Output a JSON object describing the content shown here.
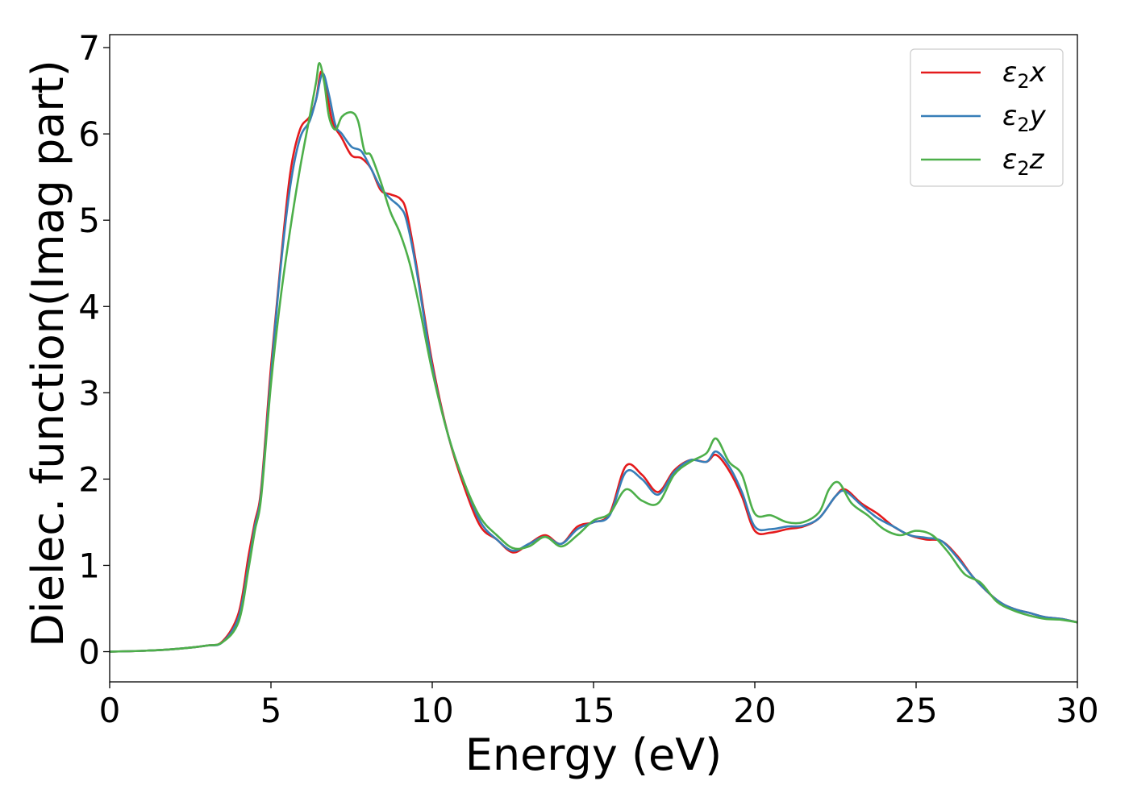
{
  "chart_data": {
    "type": "line",
    "xlabel": "Energy (eV)",
    "ylabel": "Dielec. function(Imag part)",
    "xlim": [
      0,
      30
    ],
    "ylim": [
      -0.35,
      7.15
    ],
    "xticks": [
      0,
      5,
      10,
      15,
      20,
      25,
      30
    ],
    "yticks": [
      0,
      1,
      2,
      3,
      4,
      5,
      6,
      7
    ],
    "grid": false,
    "legend_position": "top-right",
    "series": [
      {
        "name": "ε2x",
        "sub": "2",
        "suffix": "x",
        "color": "#e41a1c",
        "points": [
          [
            0,
            0
          ],
          [
            1,
            0.01
          ],
          [
            2,
            0.03
          ],
          [
            3,
            0.07
          ],
          [
            3.5,
            0.12
          ],
          [
            4,
            0.45
          ],
          [
            4.3,
            1.1
          ],
          [
            4.5,
            1.5
          ],
          [
            4.7,
            1.9
          ],
          [
            5,
            3.3
          ],
          [
            5.3,
            4.5
          ],
          [
            5.6,
            5.55
          ],
          [
            5.9,
            6.05
          ],
          [
            6.2,
            6.2
          ],
          [
            6.4,
            6.4
          ],
          [
            6.55,
            6.72
          ],
          [
            6.7,
            6.55
          ],
          [
            6.9,
            6.15
          ],
          [
            7.2,
            5.95
          ],
          [
            7.5,
            5.75
          ],
          [
            7.8,
            5.72
          ],
          [
            8.1,
            5.6
          ],
          [
            8.4,
            5.35
          ],
          [
            8.7,
            5.3
          ],
          [
            9,
            5.25
          ],
          [
            9.2,
            5.1
          ],
          [
            9.5,
            4.5
          ],
          [
            10,
            3.35
          ],
          [
            10.5,
            2.5
          ],
          [
            11,
            1.9
          ],
          [
            11.5,
            1.45
          ],
          [
            12,
            1.3
          ],
          [
            12.5,
            1.15
          ],
          [
            13,
            1.25
          ],
          [
            13.5,
            1.35
          ],
          [
            14,
            1.25
          ],
          [
            14.5,
            1.45
          ],
          [
            15,
            1.5
          ],
          [
            15.5,
            1.6
          ],
          [
            16,
            2.15
          ],
          [
            16.5,
            2.05
          ],
          [
            17,
            1.85
          ],
          [
            17.5,
            2.1
          ],
          [
            18,
            2.22
          ],
          [
            18.5,
            2.2
          ],
          [
            18.8,
            2.28
          ],
          [
            19.2,
            2.1
          ],
          [
            19.6,
            1.8
          ],
          [
            20,
            1.4
          ],
          [
            20.5,
            1.38
          ],
          [
            21,
            1.42
          ],
          [
            21.5,
            1.45
          ],
          [
            22,
            1.55
          ],
          [
            22.5,
            1.8
          ],
          [
            22.8,
            1.88
          ],
          [
            23.3,
            1.72
          ],
          [
            23.8,
            1.6
          ],
          [
            24.3,
            1.45
          ],
          [
            24.8,
            1.35
          ],
          [
            25.3,
            1.3
          ],
          [
            25.8,
            1.28
          ],
          [
            26.3,
            1.1
          ],
          [
            26.8,
            0.85
          ],
          [
            27.5,
            0.6
          ],
          [
            28,
            0.5
          ],
          [
            28.5,
            0.45
          ],
          [
            29,
            0.4
          ],
          [
            29.5,
            0.38
          ],
          [
            30,
            0.34
          ]
        ]
      },
      {
        "name": "ε2y",
        "sub": "2",
        "suffix": "y",
        "color": "#377eb8",
        "points": [
          [
            0,
            0
          ],
          [
            1,
            0.01
          ],
          [
            2,
            0.03
          ],
          [
            3,
            0.07
          ],
          [
            3.5,
            0.11
          ],
          [
            4,
            0.4
          ],
          [
            4.3,
            1.0
          ],
          [
            4.5,
            1.45
          ],
          [
            4.7,
            1.85
          ],
          [
            5,
            3.2
          ],
          [
            5.3,
            4.45
          ],
          [
            5.6,
            5.4
          ],
          [
            5.9,
            5.95
          ],
          [
            6.2,
            6.15
          ],
          [
            6.4,
            6.4
          ],
          [
            6.6,
            6.7
          ],
          [
            6.8,
            6.45
          ],
          [
            7,
            6.1
          ],
          [
            7.2,
            6.0
          ],
          [
            7.5,
            5.85
          ],
          [
            7.8,
            5.8
          ],
          [
            8.1,
            5.6
          ],
          [
            8.4,
            5.38
          ],
          [
            8.7,
            5.25
          ],
          [
            9,
            5.15
          ],
          [
            9.2,
            5.0
          ],
          [
            9.5,
            4.45
          ],
          [
            10,
            3.3
          ],
          [
            10.5,
            2.5
          ],
          [
            11,
            1.95
          ],
          [
            11.5,
            1.5
          ],
          [
            12,
            1.3
          ],
          [
            12.5,
            1.17
          ],
          [
            13,
            1.25
          ],
          [
            13.5,
            1.33
          ],
          [
            14,
            1.25
          ],
          [
            14.5,
            1.42
          ],
          [
            15,
            1.5
          ],
          [
            15.5,
            1.58
          ],
          [
            16,
            2.08
          ],
          [
            16.5,
            2.0
          ],
          [
            17,
            1.82
          ],
          [
            17.5,
            2.08
          ],
          [
            18,
            2.22
          ],
          [
            18.5,
            2.2
          ],
          [
            18.8,
            2.32
          ],
          [
            19.2,
            2.15
          ],
          [
            19.6,
            1.85
          ],
          [
            20,
            1.45
          ],
          [
            20.5,
            1.42
          ],
          [
            21,
            1.45
          ],
          [
            21.5,
            1.46
          ],
          [
            22,
            1.55
          ],
          [
            22.5,
            1.8
          ],
          [
            22.8,
            1.86
          ],
          [
            23.3,
            1.7
          ],
          [
            23.8,
            1.55
          ],
          [
            24.3,
            1.45
          ],
          [
            24.8,
            1.35
          ],
          [
            25.3,
            1.32
          ],
          [
            25.8,
            1.28
          ],
          [
            26.3,
            1.08
          ],
          [
            26.8,
            0.85
          ],
          [
            27.5,
            0.6
          ],
          [
            28,
            0.5
          ],
          [
            28.5,
            0.45
          ],
          [
            29,
            0.4
          ],
          [
            29.5,
            0.38
          ],
          [
            30,
            0.34
          ]
        ]
      },
      {
        "name": "ε2z",
        "sub": "2",
        "suffix": "z",
        "color": "#4daf4a",
        "points": [
          [
            0,
            0
          ],
          [
            1,
            0.01
          ],
          [
            2,
            0.03
          ],
          [
            3,
            0.07
          ],
          [
            3.5,
            0.11
          ],
          [
            4,
            0.35
          ],
          [
            4.3,
            0.95
          ],
          [
            4.5,
            1.4
          ],
          [
            4.7,
            1.8
          ],
          [
            5,
            3.1
          ],
          [
            5.3,
            4.1
          ],
          [
            5.6,
            4.9
          ],
          [
            5.9,
            5.6
          ],
          [
            6.2,
            6.2
          ],
          [
            6.4,
            6.6
          ],
          [
            6.5,
            6.82
          ],
          [
            6.65,
            6.6
          ],
          [
            6.8,
            6.2
          ],
          [
            7,
            6.05
          ],
          [
            7.2,
            6.2
          ],
          [
            7.5,
            6.25
          ],
          [
            7.7,
            6.15
          ],
          [
            7.9,
            5.8
          ],
          [
            8.1,
            5.75
          ],
          [
            8.4,
            5.45
          ],
          [
            8.7,
            5.1
          ],
          [
            9,
            4.85
          ],
          [
            9.3,
            4.5
          ],
          [
            9.6,
            4.0
          ],
          [
            10,
            3.25
          ],
          [
            10.5,
            2.5
          ],
          [
            11,
            1.95
          ],
          [
            11.5,
            1.55
          ],
          [
            12,
            1.35
          ],
          [
            12.5,
            1.2
          ],
          [
            13,
            1.22
          ],
          [
            13.5,
            1.33
          ],
          [
            14,
            1.22
          ],
          [
            14.5,
            1.35
          ],
          [
            15,
            1.52
          ],
          [
            15.5,
            1.6
          ],
          [
            16,
            1.88
          ],
          [
            16.5,
            1.75
          ],
          [
            17,
            1.72
          ],
          [
            17.5,
            2.05
          ],
          [
            18,
            2.2
          ],
          [
            18.5,
            2.3
          ],
          [
            18.8,
            2.47
          ],
          [
            19.2,
            2.2
          ],
          [
            19.6,
            2.05
          ],
          [
            20,
            1.6
          ],
          [
            20.5,
            1.58
          ],
          [
            21,
            1.5
          ],
          [
            21.5,
            1.5
          ],
          [
            22,
            1.62
          ],
          [
            22.3,
            1.88
          ],
          [
            22.6,
            1.96
          ],
          [
            23,
            1.72
          ],
          [
            23.5,
            1.58
          ],
          [
            24,
            1.42
          ],
          [
            24.5,
            1.35
          ],
          [
            25,
            1.4
          ],
          [
            25.5,
            1.35
          ],
          [
            26,
            1.15
          ],
          [
            26.5,
            0.9
          ],
          [
            27,
            0.8
          ],
          [
            27.5,
            0.58
          ],
          [
            28,
            0.48
          ],
          [
            28.5,
            0.42
          ],
          [
            29,
            0.38
          ],
          [
            29.5,
            0.37
          ],
          [
            30,
            0.34
          ]
        ]
      }
    ]
  }
}
